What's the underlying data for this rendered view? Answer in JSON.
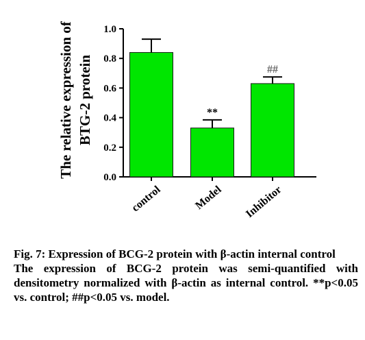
{
  "chart_data": {
    "type": "bar",
    "categories": [
      "control",
      "Model",
      "Inhibitor"
    ],
    "values": [
      0.84,
      0.33,
      0.63
    ],
    "errors": [
      0.09,
      0.055,
      0.045
    ],
    "annotations": [
      "",
      "**",
      "##"
    ],
    "ylabel_line1": "The relative expression of",
    "ylabel_line2": "BTG-2 protein",
    "xlabel": "",
    "ylim": [
      0.0,
      1.0
    ],
    "yticks": [
      "0.0",
      "0.2",
      "0.4",
      "0.6",
      "0.8",
      "1.0"
    ],
    "bar_color": "#00e600",
    "grid": false
  },
  "caption": {
    "title": "Fig. 7: Expression of BCG-2 protein with β-actin internal control",
    "description": "The expression of BCG-2 protein was semi-quantified with densitometry normalized with β-actin as internal control. **p<0.05 vs. control; ##p<0.05 vs. model."
  }
}
